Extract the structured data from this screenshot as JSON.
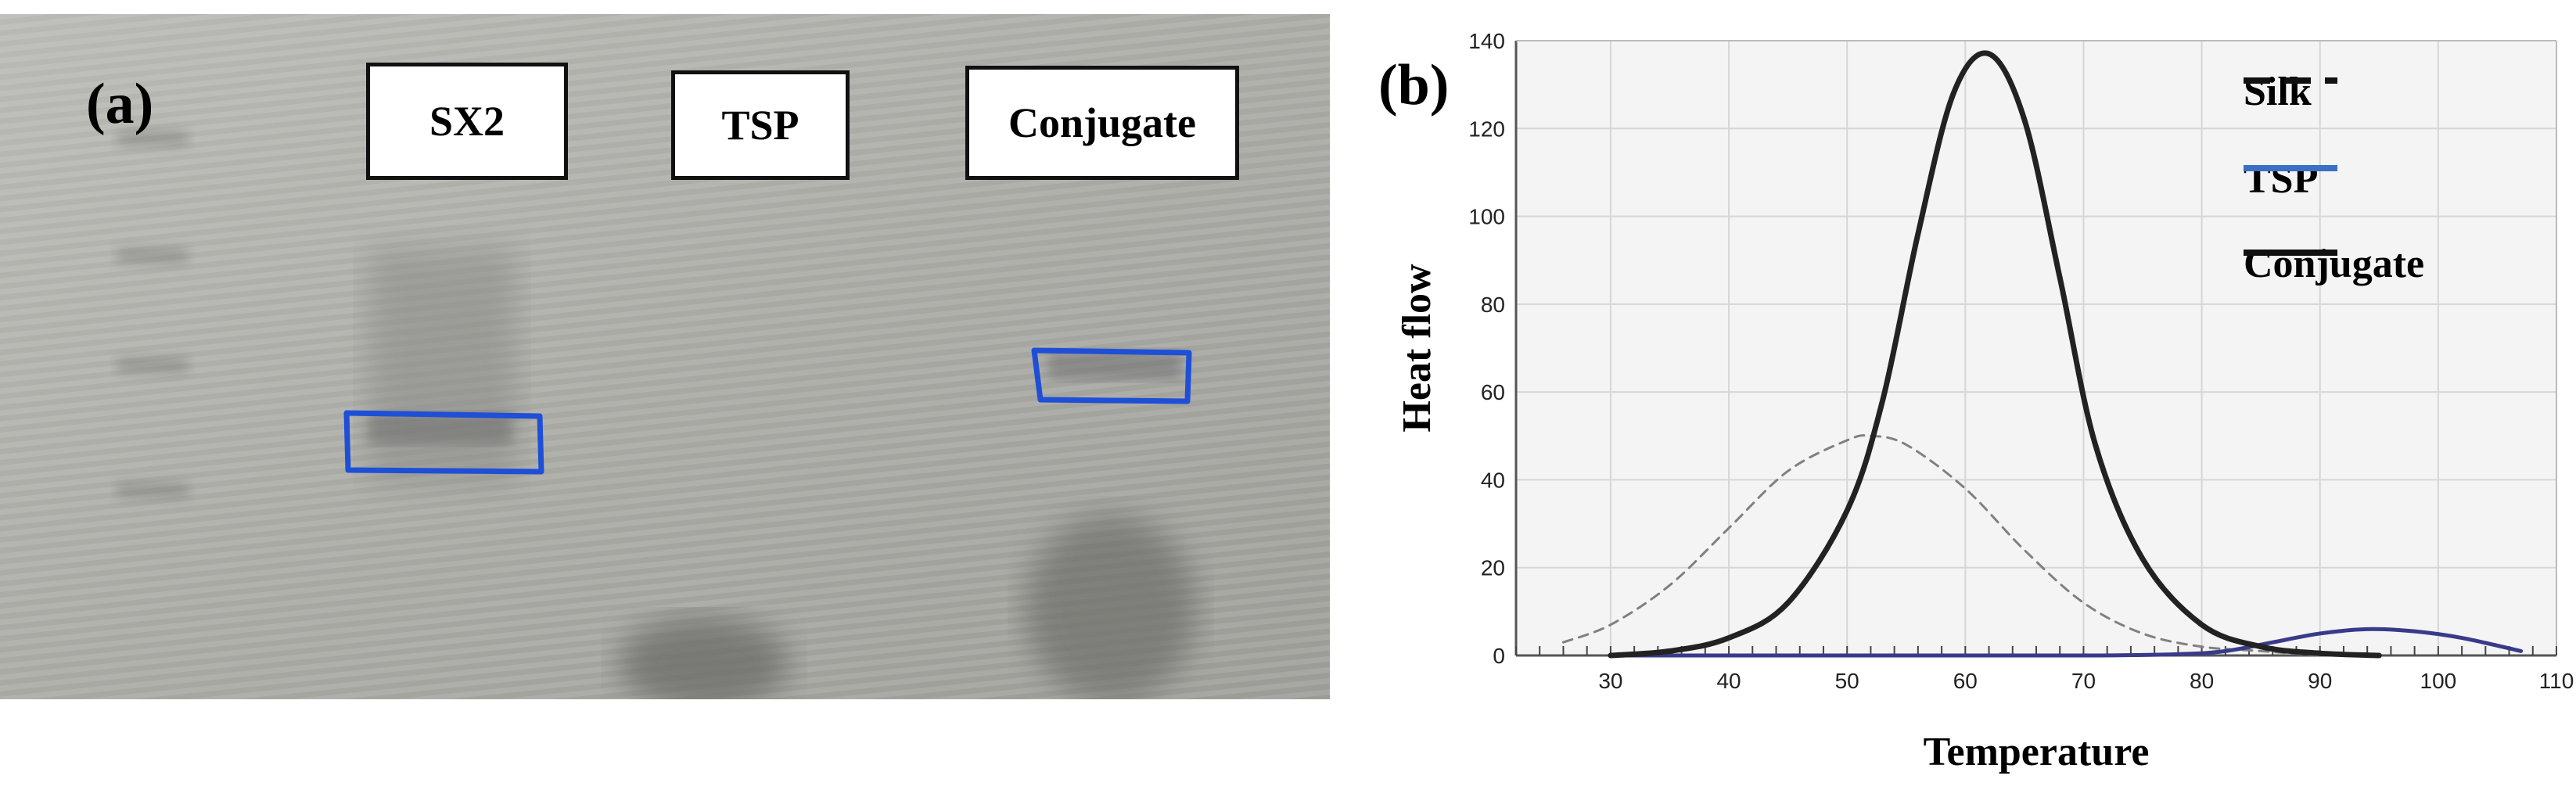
{
  "panel_a": {
    "label": "(a)",
    "lanes": [
      {
        "label": "SX2"
      },
      {
        "label": "TSP"
      },
      {
        "label": "Conjugate"
      }
    ],
    "band_color": "#1f4fd6"
  },
  "panel_b": {
    "label": "(b)",
    "chart_data": {
      "type": "line",
      "title": "",
      "xlabel": "Temperature",
      "ylabel": "Heat flow",
      "xlim": [
        22,
        110
      ],
      "ylim": [
        0,
        140
      ],
      "xticks": [
        30,
        40,
        50,
        60,
        70,
        80,
        90,
        100,
        110
      ],
      "yticks": [
        0,
        20,
        40,
        60,
        80,
        100,
        120,
        140
      ],
      "grid": true,
      "legend": "top-right",
      "series": [
        {
          "name": "Silk",
          "style": "dashed",
          "color": "#808080",
          "x": [
            26,
            30,
            35,
            40,
            45,
            50,
            52,
            55,
            60,
            65,
            70,
            75,
            80,
            85,
            90
          ],
          "y": [
            3,
            7,
            16,
            29,
            42,
            49,
            50,
            48,
            38,
            24,
            12,
            5,
            2,
            1,
            0
          ]
        },
        {
          "name": "TSP",
          "style": "solid",
          "color": "#3a3a8a",
          "x": [
            30,
            50,
            70,
            78,
            82,
            86,
            90,
            94,
            98,
            102,
            107
          ],
          "y": [
            0,
            0,
            0,
            0.3,
            1,
            3,
            5,
            6,
            5.5,
            4,
            1
          ]
        },
        {
          "name": "Conjugate",
          "style": "solid",
          "color": "#222222",
          "x": [
            30,
            35,
            40,
            45,
            50,
            53,
            56,
            59,
            62,
            65,
            68,
            71,
            75,
            80,
            85,
            90,
            95
          ],
          "y": [
            0,
            1,
            4,
            12,
            33,
            58,
            96,
            128,
            137,
            122,
            86,
            48,
            22,
            7,
            2,
            0.5,
            0
          ]
        }
      ]
    }
  }
}
